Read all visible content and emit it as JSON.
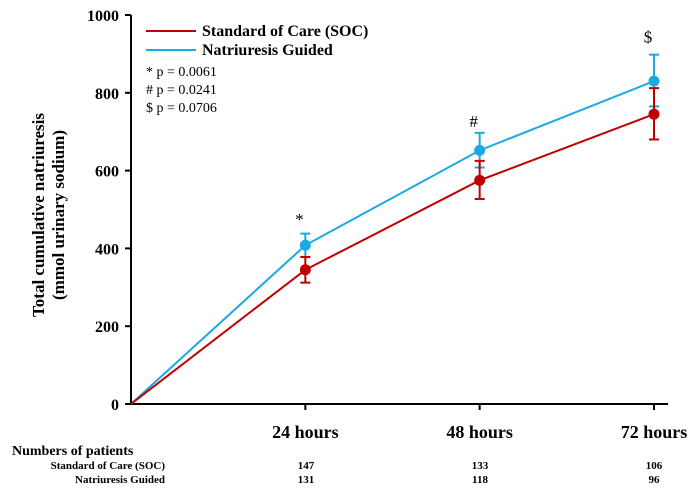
{
  "chart_data": {
    "type": "line",
    "ylabel_line1": "Total cumulative natriuresis",
    "ylabel_line2": "(mmol urinary sodium)",
    "ylim": [
      0,
      1000
    ],
    "yticks": [
      0,
      200,
      400,
      600,
      800,
      1000
    ],
    "x": [
      0,
      24,
      48,
      72
    ],
    "x_tick_labels": [
      "24 hours",
      "48 hours",
      "72 hours"
    ],
    "grid": false,
    "legend_position": "top-left",
    "series": [
      {
        "name": "Standard of Care (SOC)",
        "color": "#c00000",
        "values": [
          0,
          345,
          575,
          745
        ],
        "err_upper": [
          0,
          378,
          625,
          812
        ],
        "err_lower": [
          0,
          312,
          527,
          680
        ]
      },
      {
        "name": "Natriuresis Guided",
        "color": "#1ba9e1",
        "values": [
          0,
          408,
          652,
          830
        ],
        "err_upper": [
          0,
          438,
          697,
          898
        ],
        "err_lower": [
          0,
          378,
          608,
          765
        ]
      }
    ],
    "annotations": [
      {
        "symbol": "*",
        "x": 24,
        "y": 475
      },
      {
        "symbol": "#",
        "x": 48,
        "y": 727
      },
      {
        "symbol": "$",
        "x": 72,
        "y": 945
      }
    ],
    "pvalues": [
      "* p = 0.0061",
      "# p = 0.0241",
      "$ p = 0.0706"
    ]
  },
  "patients_table": {
    "title": "Numbers of patients",
    "rows": [
      {
        "label": "Standard of Care (SOC)",
        "values": [
          "147",
          "133",
          "106"
        ]
      },
      {
        "label": "Natriuresis Guided",
        "values": [
          "131",
          "118",
          "96"
        ]
      }
    ]
  }
}
